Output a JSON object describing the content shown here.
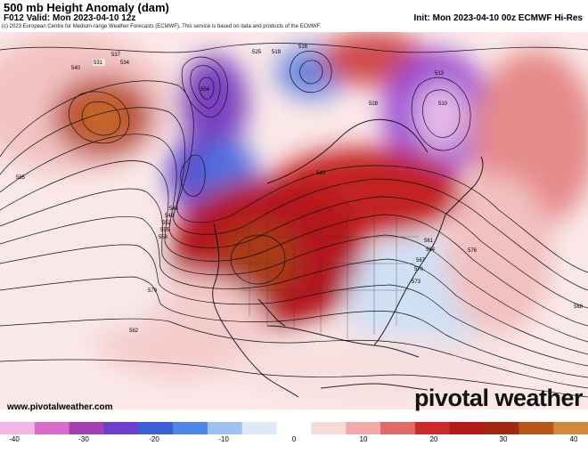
{
  "header": {
    "title": "500 mb Height Anomaly (dam)",
    "valid": "F012 Valid: Mon 2023-04-10 12z",
    "init": "Init: Mon 2023-04-10 00z ECMWF Hi-Res",
    "copyright": "(c) 2023 European Centre for Medium-range Weather Forecasts (ECMWF). This service is based on data and products of the ECMWF."
  },
  "footer": {
    "website": "www.pivotalweather.com",
    "brand": "pivotal weather"
  },
  "colorbar": {
    "ticks": [
      "-40",
      "-30",
      "-20",
      "-10",
      "0",
      "10",
      "20",
      "30",
      "40"
    ],
    "colors": [
      "#f2b8e4",
      "#d96cc9",
      "#a140b3",
      "#6b3fc9",
      "#3a5fd6",
      "#4f86e8",
      "#9ec2f0",
      "#dde9f7",
      "#ffffff",
      "#f8dada",
      "#f0aaaa",
      "#e06a6a",
      "#cc2a2a",
      "#b3181b",
      "#a02a10",
      "#b8561c",
      "#d08a3a"
    ]
  },
  "map": {
    "contour_labels": [
      {
        "text": "531"
      },
      {
        "text": "537"
      },
      {
        "text": "540"
      },
      {
        "text": "534"
      },
      {
        "text": "546"
      },
      {
        "text": "549"
      },
      {
        "text": "552"
      },
      {
        "text": "555"
      },
      {
        "text": "558"
      },
      {
        "text": "561"
      },
      {
        "text": "564"
      },
      {
        "text": "567"
      },
      {
        "text": "570"
      },
      {
        "text": "573"
      },
      {
        "text": "576"
      },
      {
        "text": "579"
      },
      {
        "text": "582"
      },
      {
        "text": "585"
      },
      {
        "text": "588"
      },
      {
        "text": "525"
      },
      {
        "text": "519"
      },
      {
        "text": "516"
      },
      {
        "text": "513"
      },
      {
        "text": "528"
      },
      {
        "text": "543"
      },
      {
        "text": "504"
      },
      {
        "text": "510"
      }
    ]
  }
}
